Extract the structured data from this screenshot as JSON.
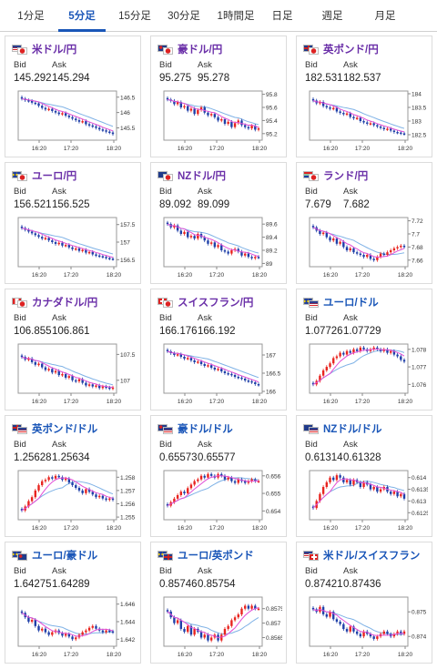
{
  "tabs": [
    {
      "label": "1分足",
      "active": false
    },
    {
      "label": "5分足",
      "active": true
    },
    {
      "label": "15分足",
      "active": false
    },
    {
      "label": "30分足",
      "active": false
    },
    {
      "label": "1時間足",
      "active": false
    },
    {
      "label": "日足",
      "active": false
    },
    {
      "label": "週足",
      "active": false
    },
    {
      "label": "月足",
      "active": false
    }
  ],
  "bid_label": "Bid",
  "ask_label": "Ask",
  "x_ticks": [
    "16:20",
    "17:20",
    "18:20"
  ],
  "colors": {
    "up": "#e8241f",
    "down": "#1f3fa8",
    "ma": "#e24ed6",
    "ma2": "#7fb2e6",
    "purple_title": "#6a2fa8",
    "blue_title": "#1a56b8",
    "tab_active": "#1a56b8"
  },
  "pairs": [
    {
      "name": "米ドル/円",
      "title_color": "purple",
      "flags": [
        "us-flag",
        "jp-flag"
      ],
      "bid": "145.292",
      "ask": "145.294",
      "y_ticks": [
        "146.5",
        "146",
        "145.5"
      ],
      "ylim": [
        145.1,
        146.7
      ],
      "series": [
        146.45,
        146.4,
        146.38,
        146.32,
        146.3,
        146.22,
        146.15,
        146.1,
        146.12,
        146.05,
        146.0,
        145.95,
        145.98,
        145.9,
        145.85,
        145.8,
        145.75,
        145.7,
        145.72,
        145.62,
        145.58,
        145.55,
        145.5,
        145.45,
        145.42,
        145.38,
        145.35,
        145.3
      ]
    },
    {
      "name": "豪ドル/円",
      "title_color": "purple",
      "flags": [
        "au-flag",
        "jp-flag"
      ],
      "bid": "95.275",
      "ask": "95.278",
      "y_ticks": [
        "95.8",
        "95.6",
        "95.4",
        "95.2"
      ],
      "ylim": [
        95.1,
        95.85
      ],
      "series": [
        95.72,
        95.7,
        95.65,
        95.68,
        95.6,
        95.62,
        95.55,
        95.58,
        95.5,
        95.56,
        95.6,
        95.52,
        95.48,
        95.5,
        95.45,
        95.4,
        95.42,
        95.35,
        95.38,
        95.3,
        95.36,
        95.4,
        95.33,
        95.3,
        95.28,
        95.32,
        95.26,
        95.28
      ]
    },
    {
      "name": "英ポンド/円",
      "title_color": "purple",
      "flags": [
        "uk-flag",
        "jp-flag"
      ],
      "bid": "182.531",
      "ask": "182.537",
      "y_ticks": [
        "184",
        "183.5",
        "183",
        "182.5"
      ],
      "ylim": [
        182.3,
        184.1
      ],
      "series": [
        183.75,
        183.65,
        183.7,
        183.55,
        183.5,
        183.45,
        183.48,
        183.35,
        183.3,
        183.25,
        183.28,
        183.15,
        183.1,
        183.12,
        183.0,
        182.95,
        182.9,
        182.92,
        182.85,
        182.8,
        182.75,
        182.7,
        182.72,
        182.65,
        182.6,
        182.58,
        182.55,
        182.53
      ]
    },
    {
      "name": "ユーロ/円",
      "title_color": "purple",
      "flags": [
        "eu-flag",
        "jp-flag"
      ],
      "bid": "156.521",
      "ask": "156.525",
      "y_ticks": [
        "157.5",
        "157",
        "156.5"
      ],
      "ylim": [
        156.3,
        157.7
      ],
      "series": [
        157.4,
        157.35,
        157.3,
        157.25,
        157.2,
        157.15,
        157.1,
        157.12,
        157.05,
        157.0,
        156.95,
        156.98,
        156.9,
        156.92,
        156.85,
        156.8,
        156.82,
        156.75,
        156.78,
        156.7,
        156.72,
        156.65,
        156.62,
        156.6,
        156.58,
        156.55,
        156.53,
        156.52
      ]
    },
    {
      "name": "NZドル/円",
      "title_color": "purple",
      "flags": [
        "nz-flag",
        "jp-flag"
      ],
      "bid": "89.092",
      "ask": "89.099",
      "y_ticks": [
        "89.6",
        "89.4",
        "89.2",
        "89"
      ],
      "ylim": [
        88.95,
        89.7
      ],
      "series": [
        89.6,
        89.55,
        89.58,
        89.5,
        89.45,
        89.48,
        89.4,
        89.42,
        89.38,
        89.45,
        89.4,
        89.35,
        89.3,
        89.32,
        89.25,
        89.28,
        89.2,
        89.18,
        89.15,
        89.2,
        89.22,
        89.18,
        89.12,
        89.15,
        89.1,
        89.08,
        89.1,
        89.09
      ]
    },
    {
      "name": "ランド/円",
      "title_color": "purple",
      "flags": [
        "za-flag",
        "jp-flag"
      ],
      "bid": "7.679",
      "ask": "7.682",
      "y_ticks": [
        "7.72",
        "7.7",
        "7.68",
        "7.66"
      ],
      "ylim": [
        7.65,
        7.725
      ],
      "series": [
        7.71,
        7.705,
        7.7,
        7.702,
        7.695,
        7.69,
        7.693,
        7.685,
        7.688,
        7.68,
        7.675,
        7.678,
        7.672,
        7.67,
        7.668,
        7.665,
        7.668,
        7.662,
        7.66,
        7.665,
        7.67,
        7.668,
        7.672,
        7.675,
        7.678,
        7.68,
        7.682,
        7.68
      ]
    },
    {
      "name": "カナダドル/円",
      "title_color": "purple",
      "flags": [
        "ca-flag",
        "jp-flag"
      ],
      "bid": "106.855",
      "ask": "106.861",
      "y_ticks": [
        "107.5",
        "107"
      ],
      "ylim": [
        106.75,
        107.7
      ],
      "series": [
        107.45,
        107.4,
        107.42,
        107.35,
        107.3,
        107.32,
        107.25,
        107.2,
        107.22,
        107.15,
        107.18,
        107.1,
        107.12,
        107.05,
        107.08,
        107.0,
        106.98,
        107.02,
        106.95,
        106.9,
        106.92,
        106.88,
        106.9,
        106.85,
        106.88,
        106.86,
        106.84,
        106.86
      ]
    },
    {
      "name": "スイスフラン/円",
      "title_color": "purple",
      "flags": [
        "ch-flag",
        "jp-flag"
      ],
      "bid": "166.176",
      "ask": "166.192",
      "y_ticks": [
        "167",
        "166.5",
        "166"
      ],
      "ylim": [
        165.95,
        167.3
      ],
      "series": [
        167.1,
        167.05,
        167.0,
        167.02,
        166.95,
        166.9,
        166.92,
        166.85,
        166.8,
        166.82,
        166.75,
        166.7,
        166.72,
        166.65,
        166.6,
        166.62,
        166.55,
        166.5,
        166.48,
        166.45,
        166.4,
        166.38,
        166.35,
        166.3,
        166.28,
        166.25,
        166.2,
        166.18
      ]
    },
    {
      "name": "ユーロ/ドル",
      "title_color": "blue",
      "flags": [
        "eu-flag",
        "us-flag"
      ],
      "bid": "1.07726",
      "ask": "1.07729",
      "y_ticks": [
        "1.078",
        "1.077",
        "1.076"
      ],
      "ylim": [
        1.0755,
        1.0783
      ],
      "series": [
        1.076,
        1.0762,
        1.0765,
        1.0768,
        1.077,
        1.0772,
        1.0775,
        1.0776,
        1.0778,
        1.0777,
        1.0779,
        1.0778,
        1.078,
        1.0779,
        1.0781,
        1.078,
        1.0779,
        1.078,
        1.0781,
        1.078,
        1.0779,
        1.078,
        1.0778,
        1.0779,
        1.0777,
        1.0776,
        1.0774,
        1.0773
      ]
    },
    {
      "name": "英ポンド/ドル",
      "title_color": "blue",
      "flags": [
        "uk-flag",
        "us-flag"
      ],
      "bid": "1.25628",
      "ask": "1.25634",
      "y_ticks": [
        "1.258",
        "1.257",
        "1.256",
        "1.255"
      ],
      "ylim": [
        1.2548,
        1.2585
      ],
      "series": [
        1.2555,
        1.2558,
        1.2562,
        1.2565,
        1.257,
        1.2574,
        1.2577,
        1.2578,
        1.258,
        1.2579,
        1.2581,
        1.258,
        1.2578,
        1.2579,
        1.2576,
        1.2574,
        1.2572,
        1.257,
        1.2568,
        1.2571,
        1.2569,
        1.2567,
        1.2565,
        1.2566,
        1.2564,
        1.2563,
        1.2564,
        1.2563
      ]
    },
    {
      "name": "豪ドル/ドル",
      "title_color": "blue",
      "flags": [
        "au-flag",
        "us-flag"
      ],
      "bid": "0.65573",
      "ask": "0.65577",
      "y_ticks": [
        "0.656",
        "0.655",
        "0.654"
      ],
      "ylim": [
        0.6535,
        0.6563
      ],
      "series": [
        0.6543,
        0.6545,
        0.6547,
        0.6549,
        0.6551,
        0.655,
        0.6553,
        0.6555,
        0.6557,
        0.6558,
        0.656,
        0.6559,
        0.6561,
        0.656,
        0.6559,
        0.6561,
        0.656,
        0.6558,
        0.6559,
        0.6557,
        0.6556,
        0.6558,
        0.6557,
        0.6556,
        0.6557,
        0.6558,
        0.6557,
        0.6557
      ]
    },
    {
      "name": "NZドル/ドル",
      "title_color": "blue",
      "flags": [
        "nz-flag",
        "us-flag"
      ],
      "bid": "0.61314",
      "ask": "0.61328",
      "y_ticks": [
        "0.614",
        "0.6135",
        "0.613",
        "0.6125"
      ],
      "ylim": [
        0.6122,
        0.6143
      ],
      "series": [
        0.6127,
        0.613,
        0.6133,
        0.6136,
        0.6138,
        0.614,
        0.6139,
        0.6141,
        0.614,
        0.6138,
        0.6139,
        0.6137,
        0.6139,
        0.6138,
        0.6136,
        0.6138,
        0.6137,
        0.6135,
        0.6136,
        0.6134,
        0.6135,
        0.6136,
        0.6134,
        0.6133,
        0.6134,
        0.6132,
        0.6133,
        0.6131
      ]
    },
    {
      "name": "ユーロ/豪ドル",
      "title_color": "blue",
      "flags": [
        "eu-flag",
        "au-flag"
      ],
      "bid": "1.64275",
      "ask": "1.64289",
      "y_ticks": [
        "1.646",
        "1.644",
        "1.642"
      ],
      "ylim": [
        1.6412,
        1.6468
      ],
      "series": [
        1.645,
        1.6445,
        1.644,
        1.6442,
        1.6435,
        1.643,
        1.6432,
        1.6428,
        1.6425,
        1.6428,
        1.643,
        1.6427,
        1.6424,
        1.6426,
        1.6423,
        1.642,
        1.6422,
        1.6425,
        1.6428,
        1.643,
        1.6433,
        1.6435,
        1.6432,
        1.643,
        1.6428,
        1.643,
        1.6429,
        1.6428
      ]
    },
    {
      "name": "ユーロ/英ポンド",
      "title_color": "blue",
      "flags": [
        "eu-flag",
        "uk-flag"
      ],
      "bid": "0.85746",
      "ask": "0.85754",
      "y_ticks": [
        "0.8575",
        "0.857",
        "0.8565"
      ],
      "ylim": [
        0.8562,
        0.8579
      ],
      "series": [
        0.8574,
        0.8572,
        0.857,
        0.8571,
        0.8568,
        0.8567,
        0.8569,
        0.8566,
        0.8568,
        0.8567,
        0.8565,
        0.8566,
        0.8564,
        0.8565,
        0.8566,
        0.8564,
        0.8566,
        0.8568,
        0.8569,
        0.8571,
        0.8572,
        0.8573,
        0.8575,
        0.8576,
        0.8575,
        0.8576,
        0.8575,
        0.8575
      ]
    },
    {
      "name": "米ドル/スイスフラン",
      "title_color": "blue",
      "flags": [
        "us-flag",
        "ch-flag"
      ],
      "bid": "0.87421",
      "ask": "0.87436",
      "y_ticks": [
        "0.875",
        "0.874"
      ],
      "ylim": [
        0.8736,
        0.8756
      ],
      "series": [
        0.8751,
        0.875,
        0.8752,
        0.8749,
        0.8748,
        0.875,
        0.8747,
        0.8746,
        0.8745,
        0.8743,
        0.8742,
        0.8744,
        0.8742,
        0.8741,
        0.874,
        0.8742,
        0.8741,
        0.874,
        0.8739,
        0.874,
        0.8741,
        0.8742,
        0.8741,
        0.874,
        0.8741,
        0.8742,
        0.8741,
        0.8742
      ]
    }
  ]
}
